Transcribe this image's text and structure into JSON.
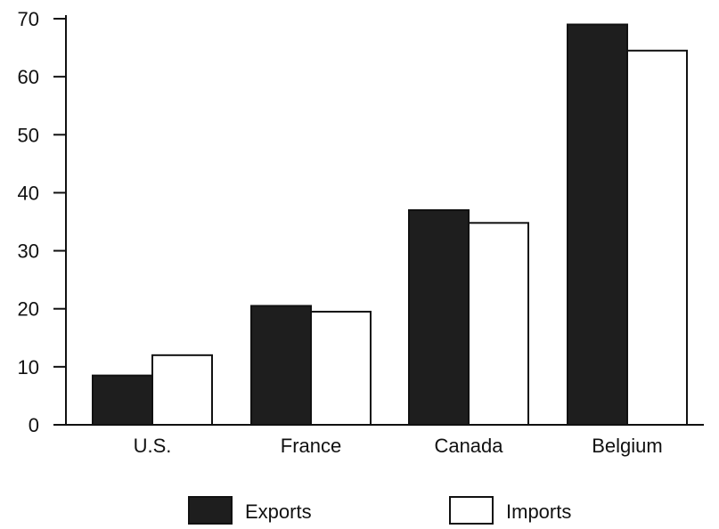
{
  "chart_data": {
    "type": "bar",
    "categories": [
      "U.S.",
      "France",
      "Canada",
      "Belgium"
    ],
    "series": [
      {
        "name": "Exports",
        "values": [
          8.5,
          20.5,
          37,
          69
        ],
        "color": "#1e1e1e"
      },
      {
        "name": "Imports",
        "values": [
          12,
          19.5,
          34.8,
          64.5
        ],
        "color": "#ffffff"
      }
    ],
    "ylim": [
      0,
      70
    ],
    "yticks": [
      "0",
      "10",
      "20",
      "30",
      "40",
      "50",
      "60",
      "70"
    ],
    "xlabel": "",
    "ylabel": "",
    "title": "",
    "grid": false,
    "legend": "bottom-center"
  }
}
